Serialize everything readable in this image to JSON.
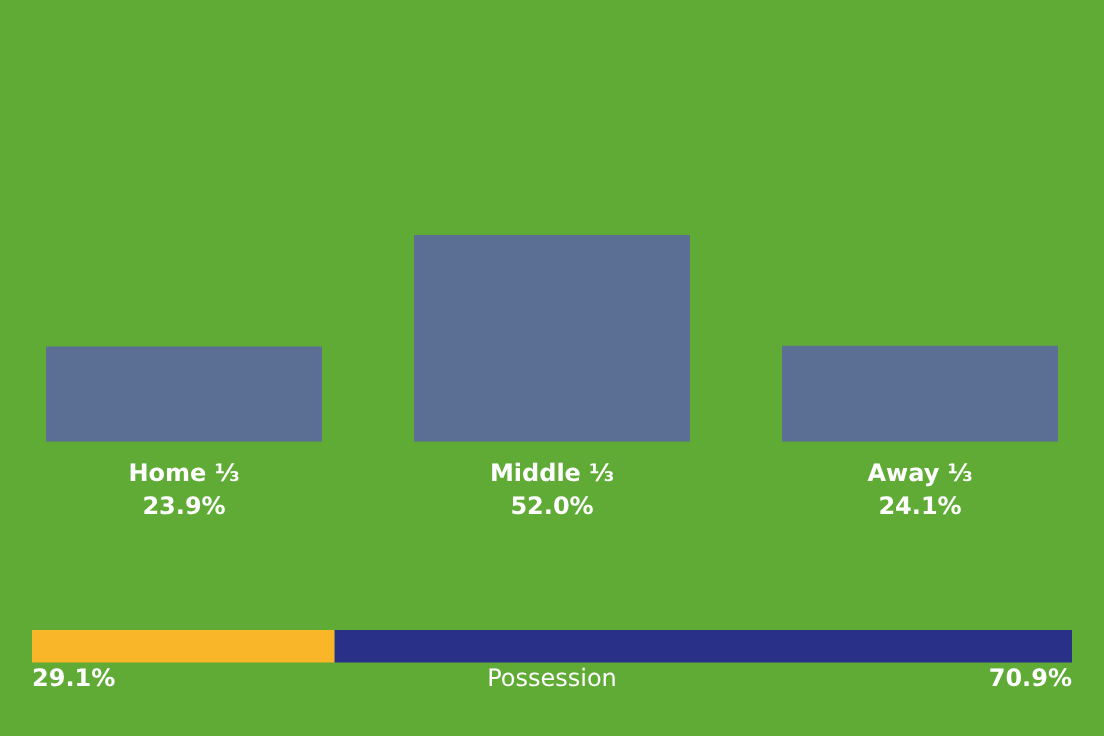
{
  "chart_data": [
    {
      "type": "bar",
      "tick_labels": false,
      "categories": [
        "Home ⅓",
        "Middle ⅓",
        "Away ⅓"
      ],
      "values": [
        23.9,
        52.0,
        24.1
      ],
      "value_labels": [
        "23.9%",
        "52.0%",
        "24.1%"
      ],
      "color": "#5b6a9a"
    },
    {
      "type": "bar",
      "orientation": "horizontal",
      "stacked": true,
      "categories": [
        null
      ],
      "xlabel": "Possession",
      "series": [
        {
          "color": "#f9b628",
          "values": [
            29.1
          ],
          "value_labels": [
            "29.1%"
          ]
        },
        {
          "color": "#283088",
          "values": [
            70.9
          ],
          "value_labels": [
            "70.9%"
          ]
        }
      ]
    }
  ]
}
